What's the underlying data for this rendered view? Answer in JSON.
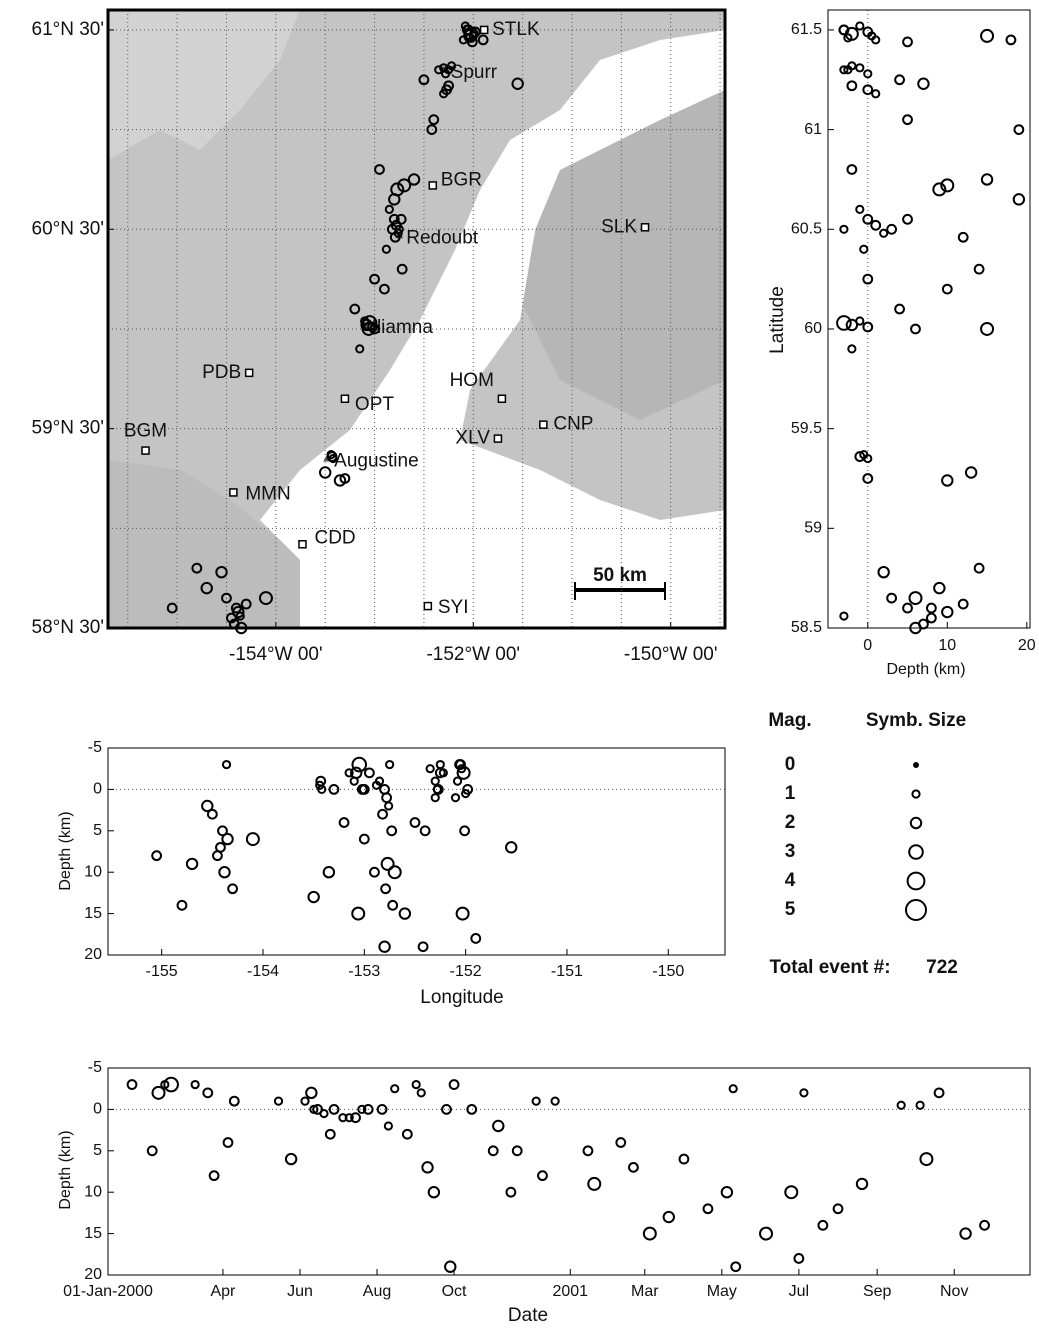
{
  "events": {
    "lon": [
      -152.05,
      -152.02,
      -152.08,
      -152.0,
      -152.1,
      -151.98,
      -152.04,
      -152.06,
      -152.01,
      -152.03,
      -152.25,
      -152.3,
      -152.28,
      -152.22,
      -152.35,
      -152.27,
      -152.3,
      -152.25,
      -151.55,
      -152.5,
      -152.4,
      -152.42,
      -152.75,
      -152.8,
      -152.78,
      -152.76,
      -152.82,
      -152.73,
      -152.77,
      -152.7,
      -152.85,
      -152.79,
      -152.95,
      -152.6,
      -152.72,
      -152.8,
      -152.88,
      -153.05,
      -153.08,
      -153.02,
      -153.1,
      -153.0,
      -153.15,
      -153.06,
      -153.0,
      -152.9,
      -153.2,
      -153.43,
      -153.42,
      -153.44,
      -153.3,
      -153.5,
      -153.35,
      -154.4,
      -154.45,
      -154.35,
      -154.5,
      -154.38,
      -154.42,
      -154.55,
      -154.3,
      -155.05,
      -154.7,
      -154.36,
      -154.8,
      -154.1,
      -151.9
    ],
    "lat": [
      61.5,
      61.48,
      61.52,
      61.47,
      61.45,
      61.49,
      61.46,
      61.5,
      61.44,
      61.47,
      61.3,
      61.31,
      61.28,
      61.32,
      61.3,
      61.2,
      61.18,
      61.22,
      61.23,
      61.25,
      61.05,
      61.0,
      60.5,
      60.55,
      60.52,
      60.48,
      60.5,
      60.55,
      60.7,
      60.72,
      60.6,
      60.46,
      60.8,
      60.75,
      60.3,
      60.65,
      60.4,
      60.03,
      60.02,
      60.01,
      60.04,
      60.0,
      59.9,
      60.0,
      60.25,
      60.2,
      60.1,
      59.36,
      59.35,
      59.37,
      59.25,
      59.28,
      59.24,
      58.6,
      58.55,
      58.5,
      58.65,
      58.58,
      58.52,
      58.78,
      58.62,
      58.6,
      58.7,
      58.56,
      58.8,
      58.65,
      61.45
    ],
    "depth": [
      -3,
      -2,
      -1,
      0.5,
      1,
      0,
      -2.5,
      -3,
      5,
      15,
      -3,
      -1,
      0,
      -2,
      -2.5,
      0,
      1,
      -2,
      7,
      4,
      5,
      19,
      -3,
      0,
      1,
      2,
      3,
      5,
      9,
      10,
      -1,
      12,
      -2,
      15,
      14,
      19,
      -0.5,
      -3,
      -2,
      0,
      -1,
      6,
      -2,
      15,
      0,
      10,
      4,
      -1,
      0,
      -0.5,
      0,
      13,
      10,
      5,
      8,
      6,
      3,
      10,
      7,
      2,
      12,
      8,
      9,
      -3,
      14,
      6,
      18
    ],
    "date": [
      "2000-01-20",
      "2000-02-10",
      "2000-06-05",
      "2000-06-20",
      "2000-07-10",
      "2000-07-25",
      "2000-08-15",
      "2000-10-01",
      "2001-01-15",
      "2001-03-05",
      "2000-03-10",
      "2000-05-15",
      "2000-06-12",
      "2000-09-05",
      "2001-05-10",
      "2000-06-28",
      "2000-07-05",
      "2001-10-20",
      "2000-09-10",
      "2000-04-05",
      "2000-11-01",
      "2001-05-12",
      "2000-02-15",
      "2000-06-15",
      "2000-07-15",
      "2000-08-10",
      "2000-08-25",
      "2000-11-20",
      "2001-01-20",
      "2001-06-25",
      "2000-12-20",
      "2001-08-01",
      "2000-03-20",
      "2001-11-10",
      "2001-07-20",
      "2000-09-28",
      "2001-10-05",
      "2000-02-20",
      "2000-06-10",
      "2000-08-05",
      "2000-12-05",
      "2001-04-01",
      "2001-07-05",
      "2001-06-05",
      "2000-10-15",
      "2000-11-15",
      "2001-02-10",
      "2000-04-10",
      "2000-07-20",
      "2001-09-20",
      "2000-09-25",
      "2001-03-20",
      "2001-05-05",
      "2000-02-05",
      "2000-03-25",
      "2000-05-25",
      "2000-06-25",
      "2000-09-15",
      "2001-02-20",
      "2000-11-05",
      "2001-04-20",
      "2000-12-10",
      "2001-08-20",
      "2000-09-01",
      "2001-11-25",
      "2001-10-10",
      "2001-07-01"
    ],
    "mag": [
      1.5,
      2.5,
      1,
      1,
      1,
      1.5,
      1,
      1.5,
      1.5,
      2.5,
      1,
      1,
      1,
      1,
      1,
      1.5,
      1,
      1.5,
      2,
      1.5,
      1.5,
      1.5,
      1,
      1.5,
      1.5,
      1,
      1.5,
      1.5,
      2.5,
      2.5,
      1,
      1.5,
      1.5,
      2,
      1.5,
      2,
      1,
      3,
      2,
      1.5,
      1,
      1.5,
      1,
      2.5,
      1.5,
      1.5,
      1.5,
      1.5,
      1,
      1,
      1.5,
      2,
      2,
      1.5,
      1.5,
      2,
      1.5,
      2,
      1.5,
      2,
      1.5,
      1.5,
      2,
      1,
      1.5,
      2.5,
      1.5
    ]
  },
  "chart_data": [
    {
      "type": "map",
      "xlim": [
        -155.7,
        -149.45
      ],
      "ylim": [
        58.5,
        61.6
      ],
      "xticks": [
        {
          "value": -154,
          "label": "-154°W 00'"
        },
        {
          "value": -152,
          "label": "-152°W 00'"
        },
        {
          "value": -150,
          "label": "-150°W 00'"
        }
      ],
      "yticks": [
        {
          "value": 61.5,
          "label": "61°N 30'"
        },
        {
          "value": 60.5,
          "label": "60°N 30'"
        },
        {
          "value": 59.5,
          "label": "59°N 30'"
        },
        {
          "value": 58.5,
          "label": "58°N 30'"
        }
      ],
      "lon_grid": [
        -155.5,
        -155,
        -154.5,
        -154,
        -153.5,
        -153,
        -152.5,
        -152,
        -151.5,
        -151,
        -150.5,
        -150,
        -149.5
      ],
      "lat_grid": [
        59,
        59.5,
        60,
        60.5,
        61,
        61.5
      ],
      "stations": {
        "names": [
          "STLK",
          "BGR",
          "SLK",
          "PDB",
          "OPT",
          "HOM",
          "CNP",
          "XLV",
          "BGM",
          "MMN",
          "CDD",
          "SYI"
        ],
        "lon": [
          -151.89,
          -152.41,
          -150.26,
          -154.27,
          -153.3,
          -151.71,
          -151.29,
          -151.75,
          -155.32,
          -154.43,
          -153.73,
          -152.46
        ],
        "lat": [
          61.5,
          60.72,
          60.51,
          59.78,
          59.65,
          59.65,
          59.52,
          59.45,
          59.39,
          59.18,
          58.92,
          58.61
        ]
      },
      "volcanoes": {
        "names": [
          "Spurr",
          "Redoubt",
          "Iliamna",
          "Augustine"
        ],
        "lon": [
          -152.3,
          -152.75,
          -153.1,
          -153.48
        ],
        "lat": [
          61.3,
          60.47,
          60.02,
          59.35
        ]
      },
      "scale_bar": "50 km"
    },
    {
      "type": "scatter",
      "xlabel": "Depth (km)",
      "ylabel": "Latitude",
      "xlim": [
        -5,
        20.4
      ],
      "ylim": [
        58.5,
        61.6
      ],
      "xticks": [
        0,
        10,
        20
      ],
      "yticks": [
        58.5,
        59,
        59.5,
        60,
        60.5,
        61,
        61.5
      ],
      "ref_line": 0
    },
    {
      "type": "scatter",
      "xlabel": "Longitude",
      "ylabel": "Depth (km)",
      "xlim": [
        -155.53,
        -149.44
      ],
      "ylim": [
        -5,
        20
      ],
      "y_inverted": true,
      "xticks": [
        -155,
        -154,
        -153,
        -152,
        -151,
        -150
      ],
      "yticks": [
        -5,
        0,
        5,
        10,
        15,
        20
      ],
      "ref_line": 0
    },
    {
      "type": "scatter",
      "xlabel": "Date",
      "ylabel": "Depth (km)",
      "xlim": [
        "2000-01-01",
        "2001-12-31"
      ],
      "ylim": [
        -5,
        20
      ],
      "y_inverted": true,
      "xticks": [
        {
          "value": "2000-01-01",
          "label": "01-Jan-2000"
        },
        {
          "value": "2000-04-01",
          "label": "Apr"
        },
        {
          "value": "2000-06-01",
          "label": "Jun"
        },
        {
          "value": "2000-08-01",
          "label": "Aug"
        },
        {
          "value": "2000-10-01",
          "label": "Oct"
        },
        {
          "value": "2001-01-01",
          "label": "2001"
        },
        {
          "value": "2001-03-01",
          "label": "Mar"
        },
        {
          "value": "2001-05-01",
          "label": "May"
        },
        {
          "value": "2001-07-01",
          "label": "Jul"
        },
        {
          "value": "2001-09-01",
          "label": "Sep"
        },
        {
          "value": "2001-11-01",
          "label": "Nov"
        }
      ],
      "yticks": [
        -5,
        0,
        5,
        10,
        15,
        20
      ],
      "ref_line": 0
    }
  ],
  "legend": {
    "title": "Mag.",
    "size_title": "Symb. Size",
    "mags": [
      0,
      1,
      2,
      3,
      4,
      5
    ]
  },
  "total": {
    "label": "Total event #:",
    "value": 722
  }
}
